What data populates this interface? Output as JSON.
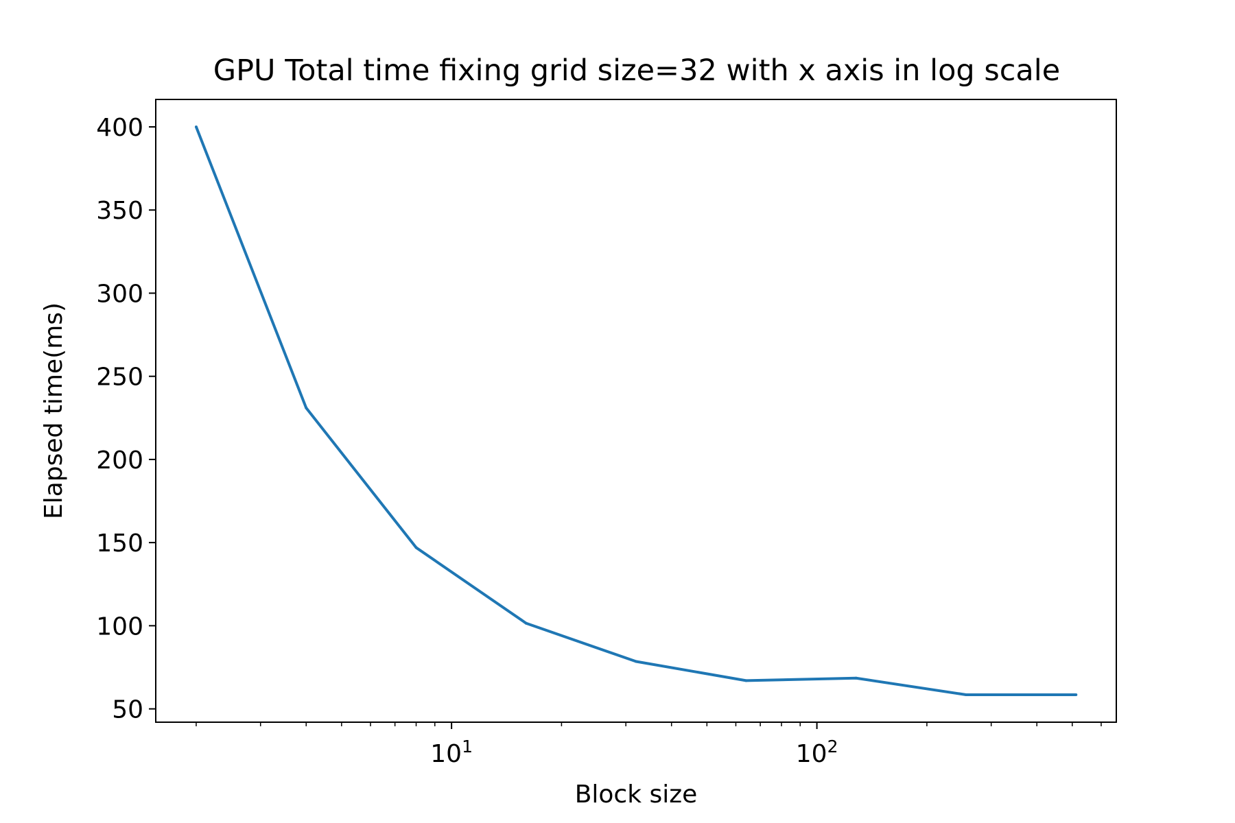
{
  "chart_data": {
    "type": "line",
    "title": "GPU Total time fixing grid size=32 with x axis in log scale",
    "xlabel": "Block size",
    "ylabel": "Elapsed time(ms)",
    "x_scale": "log",
    "x": [
      2,
      4,
      8,
      16,
      32,
      64,
      128,
      256,
      512
    ],
    "series": [
      {
        "values": [
          400,
          231,
          147,
          101.5,
          78.5,
          67,
          68.5,
          58.5,
          58.5
        ],
        "color": "#1f77b4"
      }
    ],
    "xlim": [
      1.55,
      660
    ],
    "ylim": [
      42,
      416.5
    ],
    "y_ticks": [
      50,
      100,
      150,
      200,
      250,
      300,
      350,
      400
    ],
    "y_tick_labels": [
      "50",
      "100",
      "150",
      "200",
      "250",
      "300",
      "350",
      "400"
    ],
    "x_major_ticks": [
      {
        "value": 10,
        "base": "10",
        "exp": "1"
      },
      {
        "value": 100,
        "base": "10",
        "exp": "2"
      }
    ],
    "x_minor_ticks": [
      2,
      3,
      4,
      5,
      6,
      7,
      8,
      9,
      20,
      30,
      40,
      50,
      60,
      70,
      80,
      90,
      200,
      300,
      400,
      500,
      600
    ],
    "grid": false,
    "legend": "none"
  }
}
